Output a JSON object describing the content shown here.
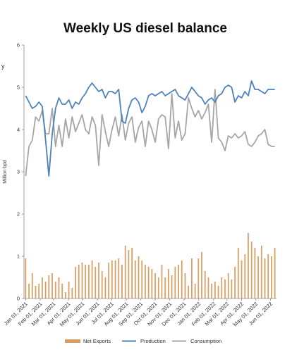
{
  "chart_data": {
    "type": "bar+line",
    "title": "Weekly US diesel balance",
    "ylabel": "Million bpd",
    "xlabel": "",
    "ylim": [
      0,
      6
    ],
    "yticks": [
      "0",
      "1",
      "2",
      "3",
      "4",
      "5",
      "6"
    ],
    "grid": false,
    "legend_position": "bottom",
    "stray_label": "y",
    "x_tick_labels": [
      "Jan 01, 2021",
      "Feb 01, 2021",
      "Mar 01, 2021",
      "Apr 01, 2021",
      "May 01, 2021",
      "Jun 01, 2021",
      "Jul 01, 2021",
      "Aug 01, 2021",
      "Sep 01, 2021",
      "Oct 01, 2021",
      "Nov 01, 2021",
      "Dec 01, 2021",
      "Jan 01, 2022",
      "Feb 01, 2022",
      "Mar 01, 2022",
      "Apr 01, 2022",
      "May 01, 2022",
      "Jun 01, 2022"
    ],
    "x_tick_week_index": [
      0,
      4.4,
      8.4,
      12.9,
      17.1,
      21.6,
      25.9,
      30.3,
      34.7,
      39,
      43.4,
      47.7,
      52.1,
      56.6,
      60.6,
      65,
      69.3,
      73.7
    ],
    "series": [
      {
        "name": "Net Exports",
        "kind": "bar",
        "color": "#d9a066",
        "values": [
          0.95,
          0.35,
          0.6,
          0.3,
          0.35,
          0.5,
          0.4,
          0.55,
          0.6,
          0.4,
          0.5,
          0.35,
          0.15,
          0.4,
          0.25,
          0.75,
          0.8,
          0.85,
          0.8,
          0.8,
          0.9,
          0.75,
          0.85,
          0.65,
          0.5,
          0.85,
          0.9,
          0.9,
          0.95,
          0.8,
          1.25,
          1.15,
          1.2,
          0.9,
          1.0,
          0.9,
          0.8,
          0.75,
          0.7,
          0.6,
          0.5,
          0.8,
          0.5,
          0.7,
          0.55,
          0.75,
          0.8,
          0.9,
          0.6,
          0.3,
          0.95,
          0.35,
          0.95,
          1.1,
          0.65,
          0.5,
          0.35,
          0.4,
          0.3,
          0.5,
          0.45,
          0.6,
          0.45,
          0.75,
          1.2,
          0.9,
          1.05,
          1.55,
          1.35,
          1.2,
          1.0,
          1.25,
          0.95,
          1.05,
          1.0,
          1.2
        ]
      },
      {
        "name": "Production",
        "kind": "line",
        "color": "#4f81bd",
        "values": [
          4.8,
          4.65,
          4.5,
          4.55,
          4.65,
          4.55,
          3.75,
          2.9,
          3.9,
          4.5,
          4.75,
          4.6,
          4.6,
          4.7,
          4.5,
          4.65,
          4.6,
          4.75,
          4.85,
          5.0,
          5.1,
          5.0,
          4.9,
          4.95,
          4.75,
          4.9,
          4.9,
          4.85,
          4.95,
          4.2,
          4.15,
          4.5,
          4.7,
          4.75,
          4.65,
          4.4,
          4.55,
          4.8,
          4.85,
          4.8,
          4.85,
          4.9,
          4.8,
          4.85,
          4.9,
          4.95,
          4.8,
          4.75,
          4.7,
          4.85,
          5.0,
          4.9,
          4.8,
          4.75,
          4.6,
          4.7,
          4.75,
          4.65,
          4.8,
          4.85,
          5.0,
          5.05,
          5.0,
          4.65,
          4.8,
          4.75,
          4.9,
          4.8,
          5.15,
          4.95,
          4.95,
          4.9,
          4.85,
          4.95,
          4.95,
          4.95
        ]
      },
      {
        "name": "Consumption",
        "kind": "line",
        "color": "#a6a6a6",
        "values": [
          2.9,
          3.6,
          3.75,
          4.3,
          4.2,
          4.45,
          3.9,
          3.9,
          4.5,
          3.6,
          4.1,
          3.6,
          4.25,
          3.8,
          4.3,
          3.95,
          4.15,
          4.35,
          4.0,
          3.9,
          4.3,
          4.1,
          3.15,
          4.35,
          3.95,
          3.6,
          4.0,
          4.3,
          3.85,
          4.35,
          3.75,
          4.15,
          4.3,
          3.7,
          4.05,
          4.2,
          3.6,
          4.2,
          4.0,
          3.7,
          4.25,
          4.35,
          4.3,
          3.55,
          4.85,
          3.8,
          4.2,
          3.75,
          3.9,
          4.75,
          4.5,
          4.3,
          4.45,
          4.25,
          4.4,
          4.6,
          3.7,
          4.95,
          3.8,
          3.7,
          3.5,
          3.85,
          3.8,
          3.9,
          3.8,
          3.85,
          3.95,
          3.65,
          3.6,
          3.7,
          3.85,
          3.9,
          4.0,
          3.65,
          3.6,
          3.6
        ]
      }
    ]
  }
}
